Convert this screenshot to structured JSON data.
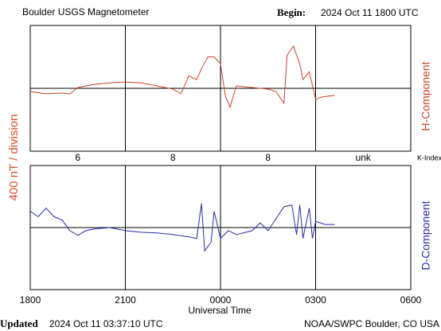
{
  "chart_data": {
    "type": "line",
    "title": "Boulder USGS Magnetometer",
    "begin_label": "Begin:",
    "begin": "2024 Oct 11 1800 UTC",
    "y_label": "400 nT / division",
    "x_label": "Universal Time",
    "xlim": [
      0,
      12
    ],
    "xticks": [
      {
        "value": 0,
        "label": "1800"
      },
      {
        "value": 3,
        "label": "2100"
      },
      {
        "value": 6,
        "label": "0000"
      },
      {
        "value": 9,
        "label": "0300"
      },
      {
        "value": 12,
        "label": "0600"
      }
    ],
    "k_index": {
      "label": "K-Index",
      "x": [
        1.5,
        4.5,
        7.5,
        10.5
      ],
      "values": [
        6,
        8,
        8,
        "unk"
      ]
    },
    "series": [
      {
        "name": "H-Component",
        "color": "#c8432a",
        "ylim": [
          -400,
          400
        ],
        "yticks": [
          0
        ],
        "x": [
          0,
          0.5,
          1,
          1.25,
          1.5,
          2,
          2.5,
          3,
          3.5,
          4,
          4.5,
          4.75,
          5,
          5.25,
          5.4,
          5.6,
          5.8,
          6,
          6.15,
          6.3,
          6.5,
          7,
          7.5,
          7.75,
          8,
          8.1,
          8.3,
          8.5,
          8.6,
          8.8,
          9,
          9.2,
          9.6
        ],
        "values": [
          -20,
          -35,
          -30,
          -35,
          5,
          25,
          35,
          40,
          35,
          15,
          -5,
          -35,
          80,
          55,
          125,
          200,
          200,
          155,
          -45,
          -120,
          15,
          5,
          -5,
          -20,
          -95,
          210,
          270,
          155,
          55,
          105,
          -70,
          -55,
          -45
        ]
      },
      {
        "name": "D-Component",
        "color": "#2a2aa8",
        "ylim": [
          -400,
          400
        ],
        "yticks": [
          0
        ],
        "x": [
          0,
          0.25,
          0.5,
          0.75,
          1,
          1.25,
          1.5,
          1.75,
          2,
          2.5,
          3,
          3.5,
          4,
          4.5,
          5,
          5.25,
          5.4,
          5.5,
          5.7,
          5.8,
          6,
          6.25,
          6.5,
          7,
          7.25,
          7.5,
          8,
          8.25,
          8.4,
          8.5,
          8.6,
          8.8,
          8.9,
          9,
          9.3,
          9.6
        ],
        "values": [
          105,
          70,
          125,
          70,
          50,
          -20,
          -50,
          -20,
          -10,
          0,
          -20,
          -30,
          -35,
          -45,
          -60,
          -70,
          155,
          -150,
          -95,
          105,
          -70,
          -20,
          -45,
          -20,
          30,
          -20,
          135,
          145,
          -45,
          145,
          -70,
          125,
          -70,
          40,
          20,
          20
        ]
      }
    ],
    "updated_label": "Updated",
    "updated": "2024 Oct 11 03:37:10 UTC",
    "credit": "NOAA/SWPC Boulder, CO USA"
  }
}
